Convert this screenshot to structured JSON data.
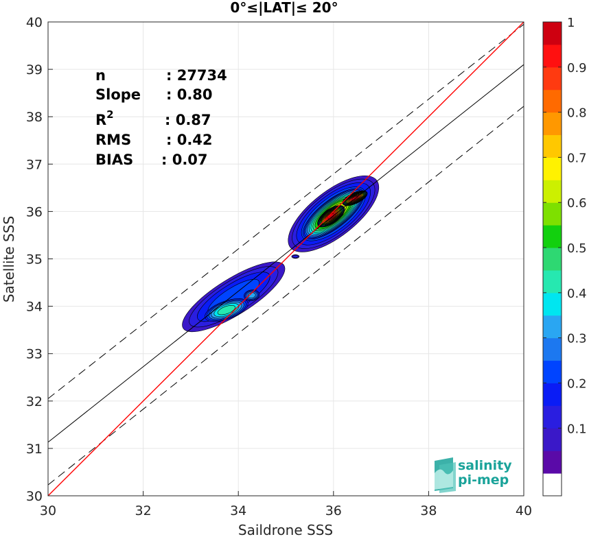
{
  "chart_data": {
    "type": "heatmap",
    "title": "0°≤|LAT|≤ 20°",
    "xlabel": "Saildrone SSS",
    "ylabel": "Satellite SSS",
    "xlim": [
      30,
      40
    ],
    "ylim": [
      30,
      40
    ],
    "xticks": [
      "30",
      "32",
      "34",
      "36",
      "38",
      "40"
    ],
    "yticks": [
      "30",
      "31",
      "32",
      "33",
      "34",
      "35",
      "36",
      "37",
      "38",
      "39",
      "40"
    ],
    "grid": true,
    "stats": {
      "n_label": "n",
      "n_value": ": 27734",
      "slope_label": "Slope",
      "slope_value": ": 0.80",
      "r2_label": "R",
      "r2_sup": "2",
      "r2_value": ": 0.87",
      "rms_label": "RMS",
      "rms_value": ": 0.42",
      "bias_label": "BIAS",
      "bias_value": ": 0.07"
    },
    "lines": {
      "identity": {
        "x": [
          30,
          40
        ],
        "y": [
          30,
          40
        ],
        "color": "#ff0000"
      },
      "fit": {
        "x": [
          30,
          40
        ],
        "y": [
          31.13,
          39.1
        ],
        "color": "#000000"
      },
      "upper_bound": {
        "x": [
          30,
          40
        ],
        "y": [
          32.05,
          39.95
        ],
        "color": "#000000",
        "dash": true
      },
      "lower_bound": {
        "x": [
          30,
          40
        ],
        "y": [
          30.23,
          38.22
        ],
        "color": "#000000",
        "dash": true
      }
    },
    "density_peaks": [
      {
        "x": 33.75,
        "y": 33.92,
        "peak": 0.42
      },
      {
        "x": 34.28,
        "y": 34.23,
        "peak": 0.32
      },
      {
        "x": 35.95,
        "y": 35.9,
        "peak": 0.93
      },
      {
        "x": 36.45,
        "y": 36.28,
        "peak": 0.96
      },
      {
        "x": 35.2,
        "y": 35.05,
        "peak": 0.08
      }
    ],
    "colorbar": {
      "min": 0,
      "max": 1,
      "ticks": [
        "0.1",
        "0.2",
        "0.3",
        "0.4",
        "0.5",
        "0.6",
        "0.7",
        "0.8",
        "0.9",
        "1"
      ],
      "levels": 20,
      "colors": [
        "#ffffff",
        "#5a0aa8",
        "#3a18c8",
        "#2a1ee0",
        "#0a1cf5",
        "#0044ff",
        "#1c78f0",
        "#2aa6f2",
        "#00e6f0",
        "#26e8b0",
        "#2ed872",
        "#12d00e",
        "#7ee000",
        "#ccf000",
        "#fff200",
        "#ffc800",
        "#ff9800",
        "#ff6a00",
        "#ff3a10",
        "#ff1010",
        "#ce0010",
        "#8a0000"
      ]
    }
  },
  "logo": {
    "line1": "salinity",
    "line2": "pi-mep"
  }
}
